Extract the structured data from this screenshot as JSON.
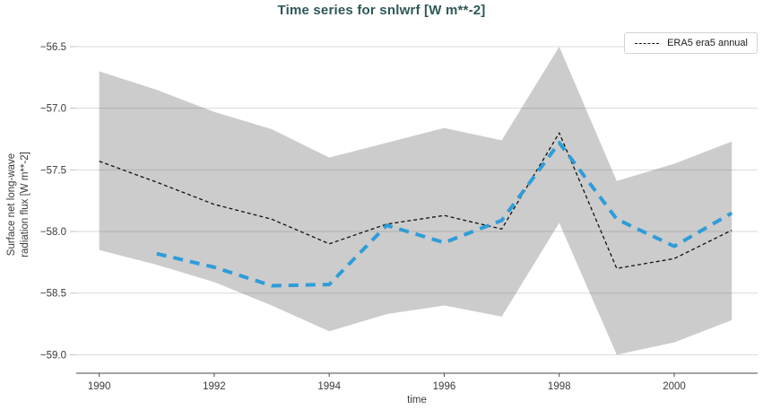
{
  "figure": {
    "title": "Time series for snlwrf [W m**-2]",
    "title_color": "#2e5757"
  },
  "chart_data": {
    "type": "line",
    "title": "Time series for snlwrf [W m**-2]",
    "xlabel": "time",
    "ylabel_lines": [
      "Surface net long-wave",
      "radiation flux [W m**-2]"
    ],
    "grid": true,
    "xlim": [
      1989.6,
      2001.45
    ],
    "ylim": [
      -59.15,
      -56.42
    ],
    "x_ticks": [
      1990,
      1992,
      1994,
      1996,
      1998,
      2000
    ],
    "x_tick_labels": [
      "1990",
      "1992",
      "1994",
      "1996",
      "1998",
      "2000"
    ],
    "y_ticks": [
      -56.5,
      -57.0,
      -57.5,
      -58.0,
      -58.5,
      -59.0
    ],
    "y_tick_labels": [
      "−56.5",
      "−57.0",
      "−57.5",
      "−58.0",
      "−58.5",
      "−59.0"
    ],
    "years": [
      1990,
      1991,
      1992,
      1993,
      1994,
      1995,
      1996,
      1997,
      1998,
      1999,
      2000,
      2001
    ],
    "band": {
      "color": "#cccccc",
      "x": [
        1990,
        1991,
        1992,
        1993,
        1994,
        1995,
        1996,
        1997,
        1998,
        1999,
        2000,
        2001
      ],
      "upper": [
        -56.7,
        -56.85,
        -57.03,
        -57.17,
        -57.4,
        -57.28,
        -57.16,
        -57.26,
        -56.5,
        -57.59,
        -57.45,
        -57.27
      ],
      "lower": [
        -58.15,
        -58.27,
        -58.41,
        -58.6,
        -58.81,
        -58.67,
        -58.6,
        -58.69,
        -57.93,
        -59.0,
        -58.9,
        -58.72
      ]
    },
    "series": [
      {
        "label": "ERA5 era5 annual",
        "color": "#111111",
        "style": "dashed",
        "width": 1.3,
        "dasharray": "4 3",
        "x": [
          1990,
          1991,
          1992,
          1993,
          1994,
          1995,
          1996,
          1997,
          1998,
          1999,
          2000,
          2001
        ],
        "y": [
          -57.43,
          -57.6,
          -57.78,
          -57.9,
          -58.1,
          -57.94,
          -57.87,
          -57.98,
          -57.2,
          -58.3,
          -58.22,
          -57.99
        ]
      },
      {
        "label": "",
        "color": "#2e9dd8",
        "style": "dashed",
        "width": 4,
        "dasharray": "11 8",
        "x": [
          1991,
          1992,
          1993,
          1994,
          1995,
          1996,
          1997,
          1998,
          1999,
          2000,
          2001
        ],
        "y": [
          -58.18,
          -58.29,
          -58.44,
          -58.43,
          -57.95,
          -58.09,
          -57.91,
          -57.28,
          -57.9,
          -58.12,
          -57.85
        ]
      }
    ],
    "legend": {
      "position": "upper-right",
      "entries": [
        {
          "label": "ERA5 era5 annual",
          "color": "#111111",
          "style": "dashed"
        }
      ]
    }
  }
}
